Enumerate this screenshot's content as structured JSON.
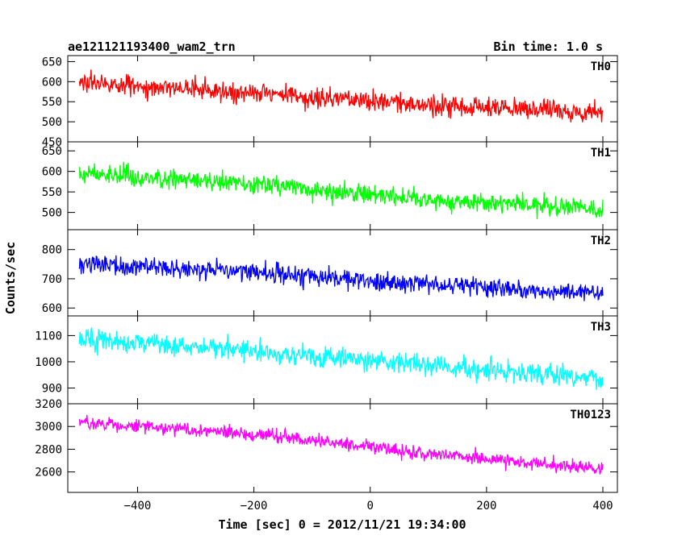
{
  "figure": {
    "title_left": "ae121121193400_wam2_trn",
    "title_right": "Bin time: 1.0 s",
    "ylabel": "Counts/sec",
    "xlabel": "Time [sec] 0 = 2012/11/21 19:34:00",
    "x_ticks": [
      -400,
      -200,
      0,
      200,
      400
    ],
    "x_tick_labels": [
      "−400",
      "−200",
      "0",
      "200",
      "400"
    ]
  },
  "chart_data": [
    {
      "type": "line",
      "name": "TH0",
      "color": "#ff0000",
      "x_range": [
        -500,
        400
      ],
      "xlim": [
        -520,
        425
      ],
      "ylim": [
        450,
        665
      ],
      "y_ticks": [
        450,
        500,
        550,
        600,
        650
      ],
      "trend": [
        [
          -500,
          597
        ],
        [
          -300,
          582
        ],
        [
          -100,
          563
        ],
        [
          100,
          542
        ],
        [
          400,
          520
        ]
      ],
      "noise_sd": 24,
      "points": 901
    },
    {
      "type": "line",
      "name": "TH1",
      "color": "#00ff00",
      "x_range": [
        -500,
        400
      ],
      "xlim": [
        -520,
        425
      ],
      "ylim": [
        458,
        672
      ],
      "y_ticks": [
        500,
        550,
        600,
        650
      ],
      "trend": [
        [
          -500,
          595
        ],
        [
          -300,
          578
        ],
        [
          -100,
          557
        ],
        [
          100,
          532
        ],
        [
          400,
          508
        ]
      ],
      "noise_sd": 23,
      "points": 901
    },
    {
      "type": "line",
      "name": "TH2",
      "color": "#0000ff",
      "x_range": [
        -500,
        400
      ],
      "xlim": [
        -520,
        425
      ],
      "ylim": [
        573,
        868
      ],
      "y_ticks": [
        600,
        700,
        800
      ],
      "trend": [
        [
          -500,
          752
        ],
        [
          -300,
          732
        ],
        [
          -100,
          708
        ],
        [
          100,
          680
        ],
        [
          400,
          650
        ]
      ],
      "noise_sd": 32,
      "points": 901
    },
    {
      "type": "line",
      "name": "TH3",
      "color": "#00ffff",
      "x_range": [
        -500,
        400
      ],
      "xlim": [
        -520,
        425
      ],
      "ylim": [
        840,
        1175
      ],
      "y_ticks": [
        900,
        1000,
        1100
      ],
      "trend": [
        [
          -500,
          1085
        ],
        [
          -300,
          1058
        ],
        [
          -100,
          1025
        ],
        [
          100,
          985
        ],
        [
          400,
          935
        ]
      ],
      "noise_sd": 40,
      "points": 901
    },
    {
      "type": "line",
      "name": "TH0123",
      "color": "#ff00ff",
      "x_range": [
        -500,
        400
      ],
      "xlim": [
        -520,
        425
      ],
      "ylim": [
        2420,
        3200
      ],
      "y_ticks": [
        2600,
        2800,
        3000,
        3200
      ],
      "trend": [
        [
          -500,
          3040
        ],
        [
          -300,
          2970
        ],
        [
          -100,
          2880
        ],
        [
          100,
          2760
        ],
        [
          400,
          2630
        ]
      ],
      "noise_sd": 58,
      "points": 901
    }
  ]
}
